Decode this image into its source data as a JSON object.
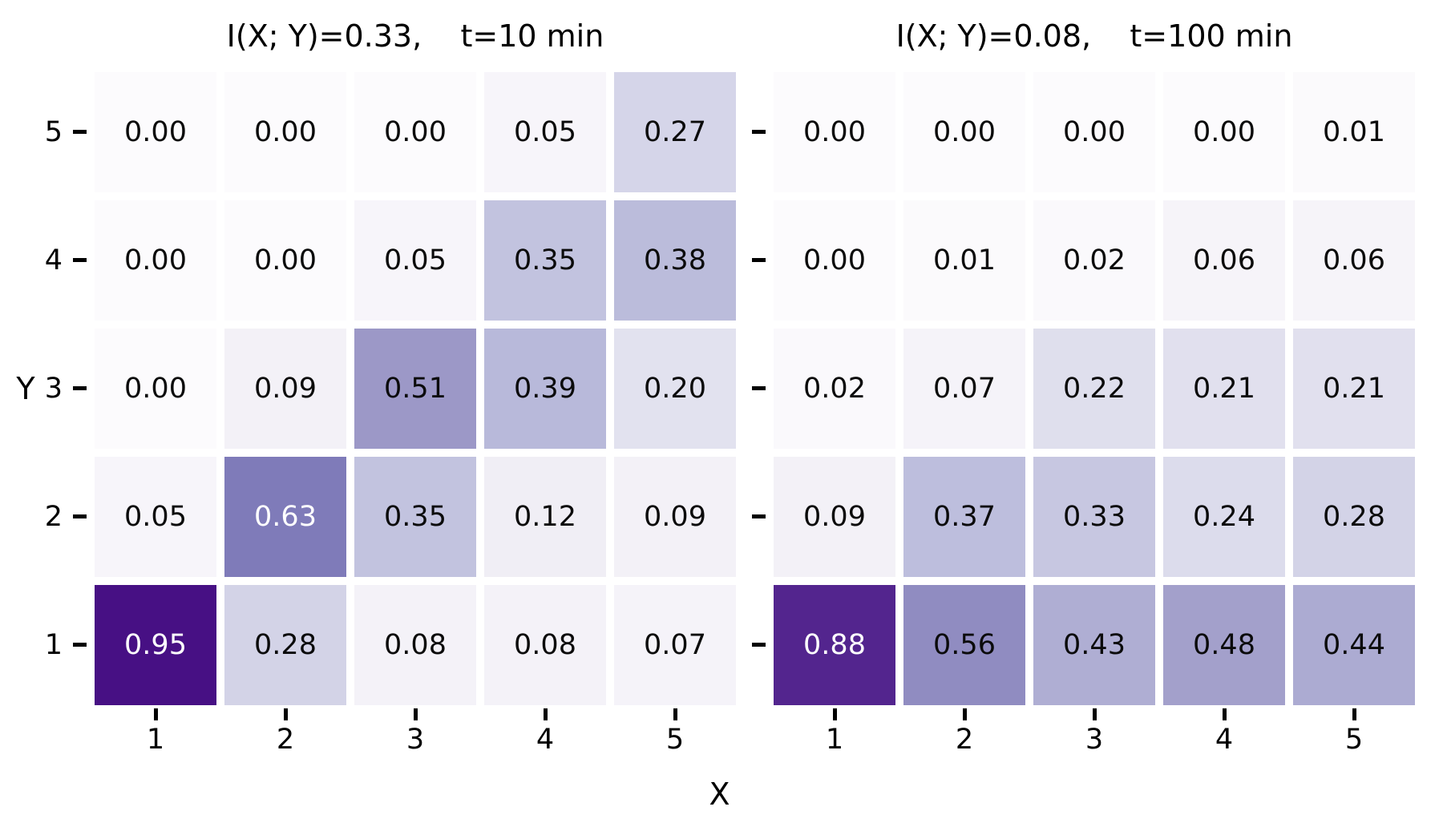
{
  "chart_data": {
    "type": "heatmap",
    "layout": "two side-by-side annotated heatmaps sharing X and Y axes",
    "xlabel": "X",
    "ylabel": "Y",
    "x_tick_labels": [
      "1",
      "2",
      "3",
      "4",
      "5"
    ],
    "y_tick_labels_top_to_bottom": [
      "5",
      "4",
      "3",
      "2",
      "1"
    ],
    "vmin": 0,
    "vmax": 1,
    "grid": false,
    "colormap": {
      "name": "Purples",
      "stops": [
        "#fcfbfd",
        "#efedf5",
        "#dadaeb",
        "#bcbddc",
        "#9e9ac8",
        "#807dba",
        "#6a51a3",
        "#54278f",
        "#3f007d"
      ]
    },
    "value_format": "0.00",
    "white_text_threshold": 0.6,
    "annotation_text_color": "#0b0b0b",
    "annotation_text_color_dark_cells": "#ffffff",
    "panels": [
      {
        "title": "I(X; Y)=0.33,    t=10 min",
        "mutual_information": "0.33",
        "time": "t=10 min",
        "show_y_tick_labels": true,
        "rows_top_to_bottom": [
          [
            0.0,
            0.0,
            0.0,
            0.05,
            0.27
          ],
          [
            0.0,
            0.0,
            0.05,
            0.35,
            0.38
          ],
          [
            0.0,
            0.09,
            0.51,
            0.39,
            0.2
          ],
          [
            0.05,
            0.63,
            0.35,
            0.12,
            0.09
          ],
          [
            0.95,
            0.28,
            0.08,
            0.08,
            0.07
          ]
        ]
      },
      {
        "title": "I(X; Y)=0.08,    t=100 min",
        "mutual_information": "0.08",
        "time": "t=100 min",
        "show_y_tick_labels": false,
        "rows_top_to_bottom": [
          [
            0.0,
            0.0,
            0.0,
            0.0,
            0.01
          ],
          [
            0.0,
            0.01,
            0.02,
            0.06,
            0.06
          ],
          [
            0.02,
            0.07,
            0.22,
            0.21,
            0.21
          ],
          [
            0.09,
            0.37,
            0.33,
            0.24,
            0.28
          ],
          [
            0.88,
            0.56,
            0.43,
            0.48,
            0.44
          ]
        ]
      }
    ]
  }
}
